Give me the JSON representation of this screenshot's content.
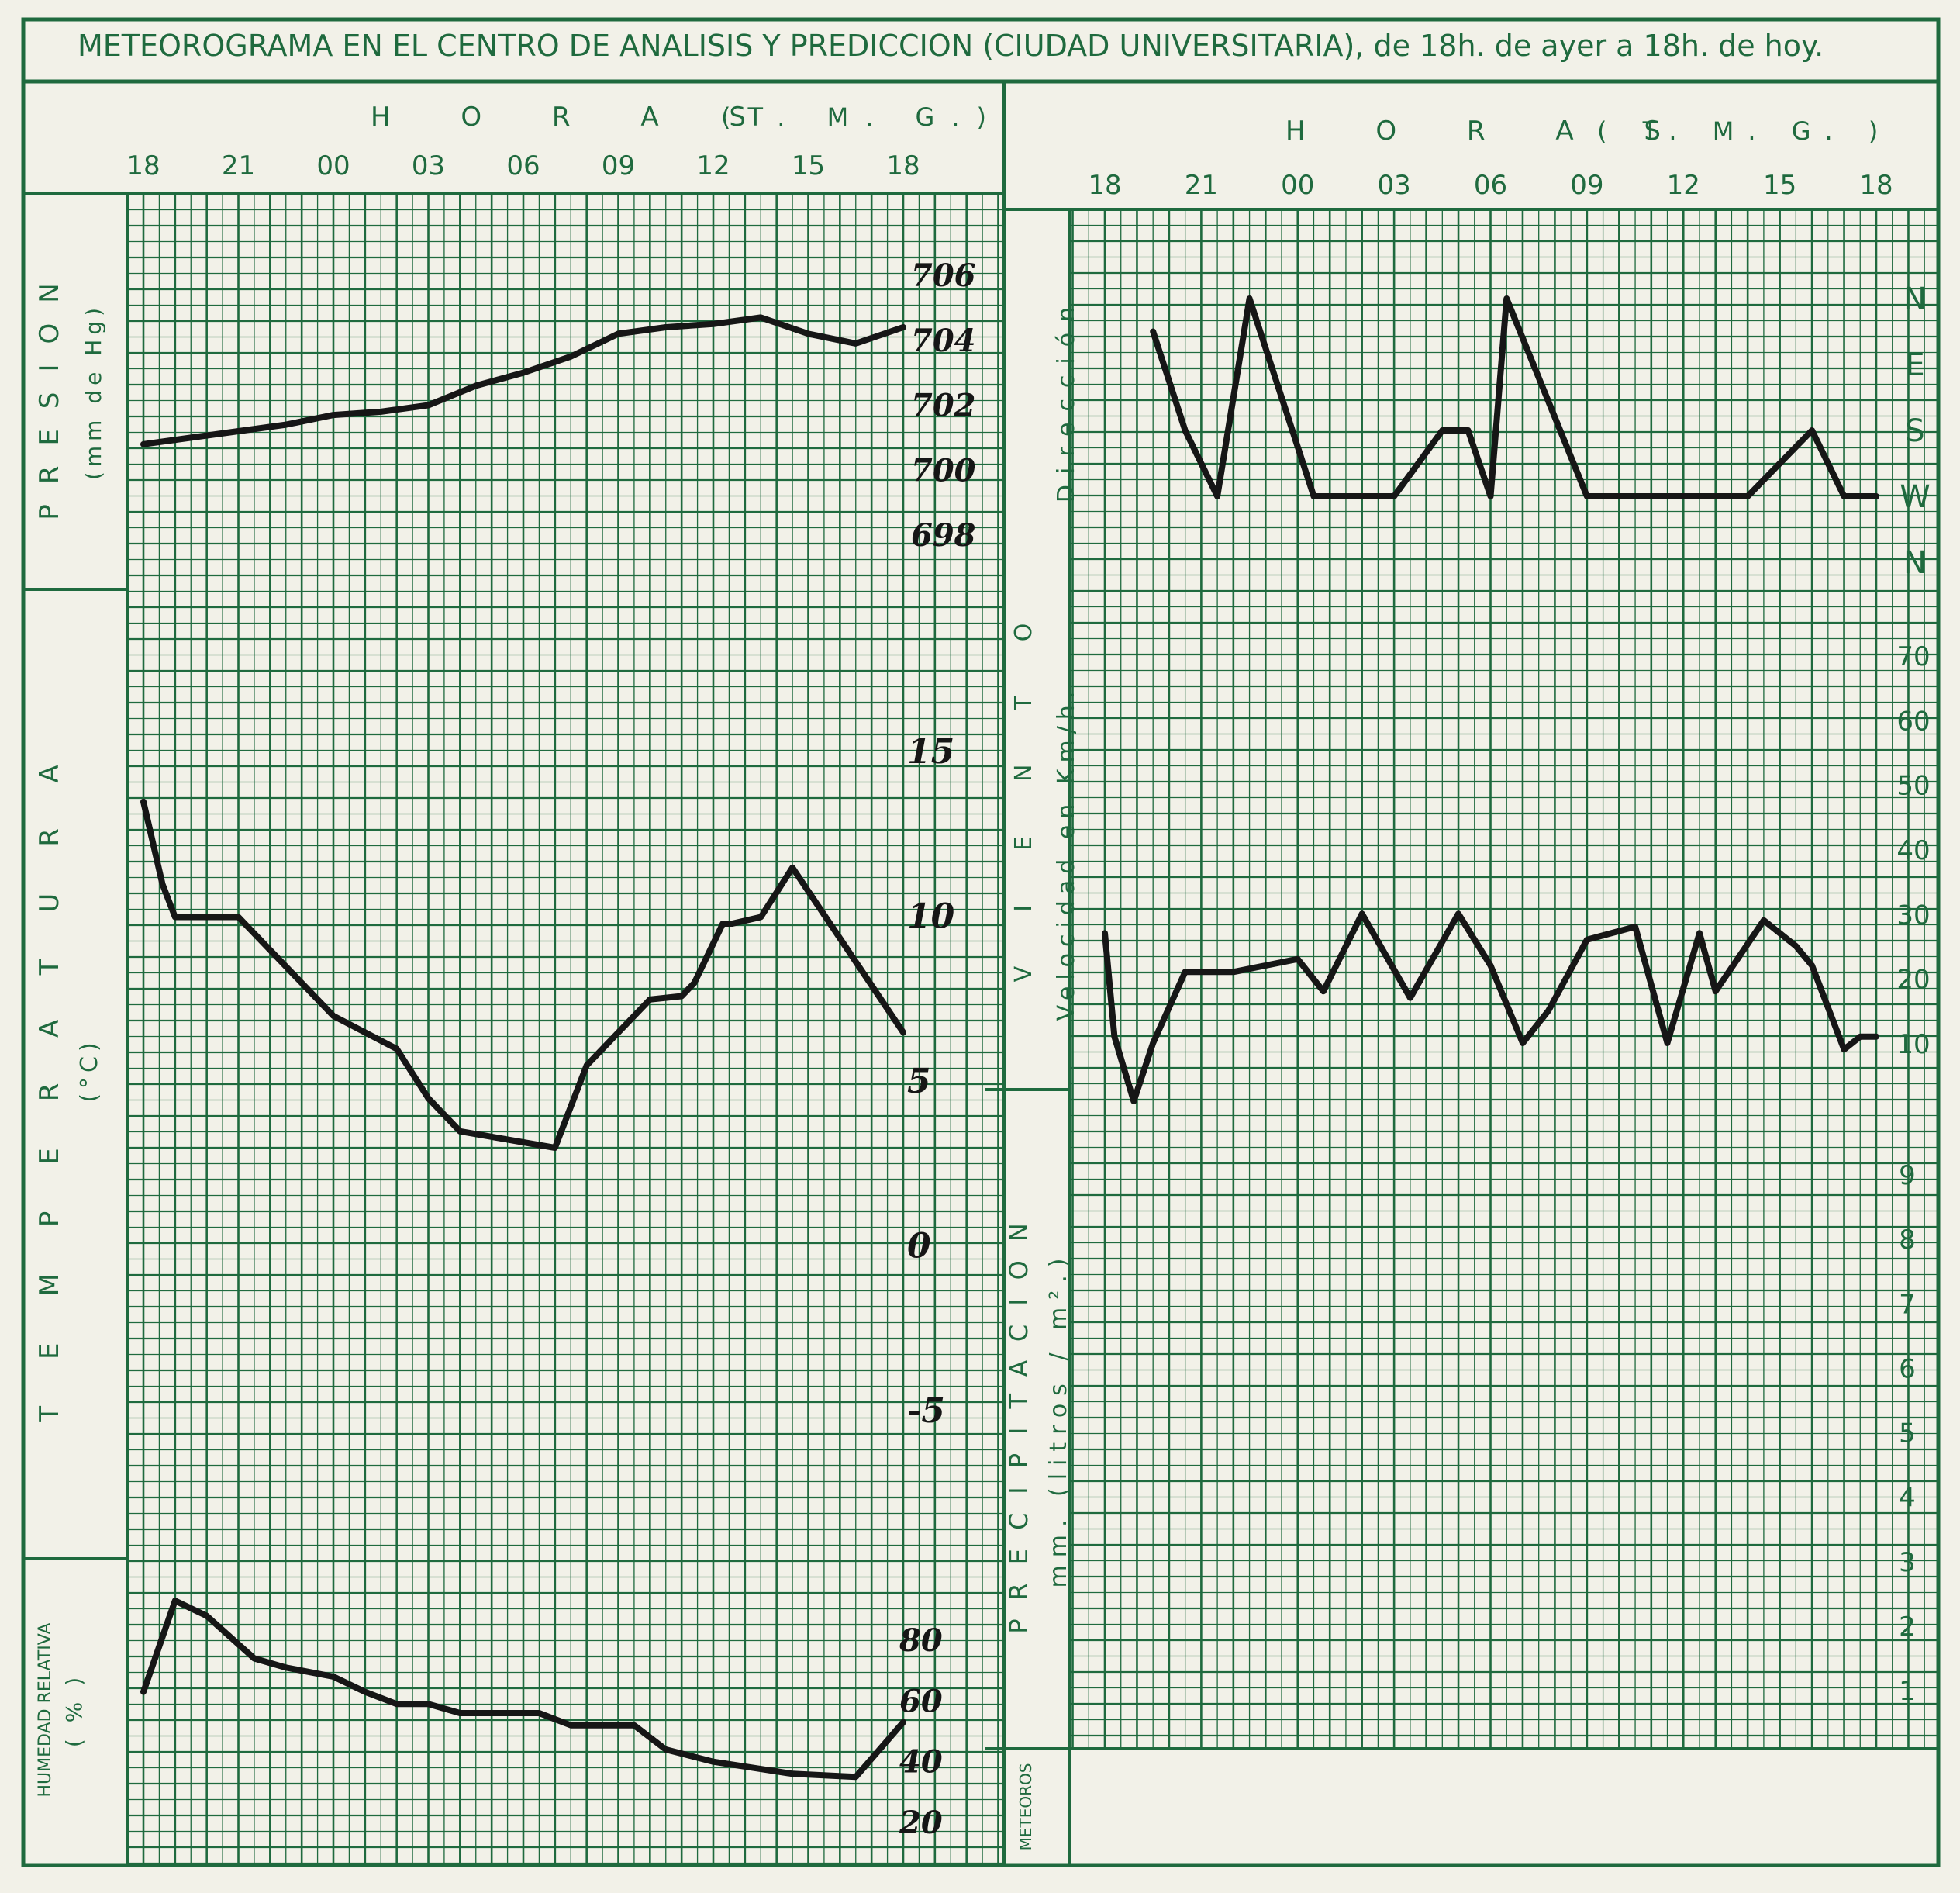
{
  "title": "METEOROGRAMA EN EL CENTRO DE ANALISIS Y PREDICCION (CIUDAD UNIVERSITARIA), de 18h. de ayer a 18h. de hoy.",
  "colors": {
    "grid": "#1f6a3e",
    "ink": "#161616",
    "paper": "#f2f1e8"
  },
  "left_header": {
    "horas_label": "H O R A S",
    "tmg_label": "(T. M. G.)",
    "hours": [
      "18",
      "21",
      "00",
      "03",
      "06",
      "09",
      "12",
      "15",
      "18"
    ]
  },
  "right_header": {
    "horas_label": "H O R A S",
    "tmg_label": "( T. M. G. )",
    "hours": [
      "18",
      "21",
      "00",
      "03",
      "06",
      "09",
      "12",
      "15",
      "18"
    ]
  },
  "labels": {
    "presion": "PRESION",
    "presion_unit": "(mm de Hg)",
    "temperatura": "TEMPERATURA",
    "temperatura_unit": "(°C)",
    "humedad": "HUMEDAD RELATIVA",
    "humedad_unit": "( % )",
    "viento": "VIENTO",
    "direccion": "Dirección",
    "velocidad": "Velocidad en Km/h.",
    "precipitacion": "PRECIPITACION",
    "precip_unit": "mm. (litros / m².)",
    "meteoros": "METEOROS"
  },
  "chart_data": [
    {
      "type": "line",
      "panel": "presion",
      "x_unit": "hours since 18h (yesterday)",
      "x": [
        0,
        1.5,
        3,
        4.5,
        6,
        7.5,
        9,
        10.5,
        12,
        13.5,
        15,
        16.5,
        18,
        19.5,
        21,
        22.5,
        24
      ],
      "y": [
        700.8,
        701.0,
        701.2,
        701.4,
        701.7,
        701.8,
        702.0,
        702.6,
        703.0,
        703.5,
        704.2,
        704.4,
        704.5,
        704.7,
        704.2,
        703.9,
        704.4
      ],
      "ylim": [
        698,
        706
      ],
      "ticks": [
        "706",
        "704",
        "702",
        "700",
        "698"
      ]
    },
    {
      "type": "line",
      "panel": "temperatura",
      "x": [
        0,
        0.6,
        1,
        3,
        6,
        8,
        9,
        10,
        13,
        14,
        16,
        17,
        17.4,
        18.3,
        18.6,
        19.5,
        20.5,
        24
      ],
      "y": [
        13.5,
        11,
        10,
        10,
        7,
        6,
        4.5,
        3.5,
        3.0,
        5.5,
        7.5,
        7.6,
        8.0,
        9.8,
        9.8,
        10.0,
        11.5,
        6.5
      ],
      "ylim": [
        -10,
        20
      ],
      "ticks": [
        "15",
        "10",
        "5",
        "0",
        "-5"
      ]
    },
    {
      "type": "line",
      "panel": "humedad",
      "x": [
        0,
        1,
        2,
        3.5,
        4.5,
        6,
        7,
        8,
        9,
        10,
        11.5,
        12.5,
        13.5,
        15.5,
        16.5,
        18,
        20.5,
        22.5,
        24
      ],
      "y": [
        63,
        93,
        88,
        74,
        71,
        68,
        63,
        59,
        59,
        56,
        56,
        56,
        52,
        52,
        44,
        40,
        36,
        35,
        53
      ],
      "ylim": [
        15,
        105
      ],
      "ticks": [
        "80",
        "60",
        "40",
        "20"
      ]
    },
    {
      "type": "line",
      "panel": "viento_direccion",
      "x": [
        1.5,
        2.5,
        3.5,
        4.5,
        6.5,
        7.5,
        9,
        10.5,
        11,
        11.3,
        12,
        12.5,
        15,
        17,
        18.5,
        19.5,
        20,
        22,
        23,
        23.5,
        24
      ],
      "y": [
        "NE",
        "S",
        "W",
        "N",
        "W",
        "W",
        "W",
        "S",
        "S",
        "S",
        "W",
        "N",
        "W",
        "W",
        "W",
        "W",
        "W",
        "S",
        "W",
        "W",
        "W"
      ],
      "ylim": [
        "N",
        "N"
      ],
      "ticks": [
        "N",
        "E",
        "S",
        "W",
        "N"
      ]
    },
    {
      "type": "line",
      "panel": "viento_velocidad",
      "x": [
        0,
        0.3,
        0.9,
        1.5,
        2.5,
        4,
        6,
        6.8,
        7,
        8,
        9.5,
        11,
        12,
        13,
        13.8,
        15,
        16.5,
        17.5,
        18.5,
        19,
        20.5,
        21.5,
        22,
        23,
        23.5,
        24
      ],
      "y": [
        27,
        11,
        1,
        10,
        21,
        21,
        23,
        18,
        20,
        30,
        17,
        30,
        22,
        10,
        15,
        26,
        28,
        10,
        27,
        18,
        29,
        25,
        22,
        9,
        11,
        11
      ],
      "ylim": [
        0,
        80
      ],
      "ticks": [
        "70",
        "60",
        "50",
        "40",
        "30",
        "20",
        "10"
      ]
    },
    {
      "type": "line",
      "panel": "precipitacion",
      "x": [],
      "y": [],
      "ylim": [
        0,
        10
      ],
      "ticks": [
        "9",
        "8",
        "7",
        "6",
        "5",
        "4",
        "3",
        "2",
        "1"
      ]
    }
  ]
}
